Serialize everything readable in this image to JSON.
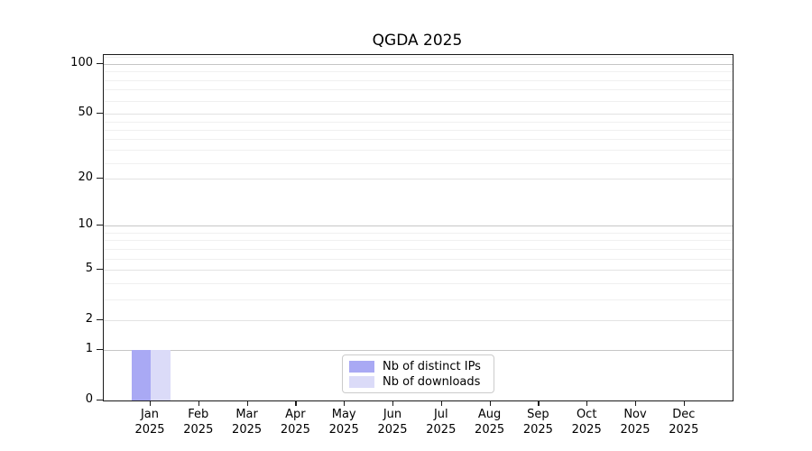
{
  "figure": {
    "title": "QGDA 2025"
  },
  "legend": {
    "items": [
      {
        "label": "Nb of distinct IPs",
        "color": "#a9a9f4"
      },
      {
        "label": "Nb of downloads",
        "color": "#dbdbf8"
      }
    ]
  },
  "chart_data": {
    "type": "bar",
    "title": "QGDA 2025",
    "categories": [
      "Jan 2025",
      "Feb 2025",
      "Mar 2025",
      "Apr 2025",
      "May 2025",
      "Jun 2025",
      "Jul 2025",
      "Aug 2025",
      "Sep 2025",
      "Oct 2025",
      "Nov 2025",
      "Dec 2025"
    ],
    "series": [
      {
        "name": "Nb of distinct IPs",
        "color": "#a9a9f4",
        "values": [
          1,
          0,
          0,
          0,
          0,
          0,
          0,
          0,
          0,
          0,
          0,
          0
        ]
      },
      {
        "name": "Nb of downloads",
        "color": "#dbdbf8",
        "values": [
          1,
          0,
          0,
          0,
          0,
          0,
          0,
          0,
          0,
          0,
          0,
          0
        ]
      }
    ],
    "xlabel": "",
    "ylabel": "",
    "yscale": "log1p",
    "ylim": [
      0,
      113
    ],
    "y_major_ticks": [
      0,
      1,
      2,
      5,
      10,
      20,
      50,
      100
    ],
    "y_minor_ticks": [
      3,
      4,
      6,
      7,
      8,
      9,
      25,
      30,
      35,
      40,
      45,
      60,
      70,
      80,
      90,
      110
    ],
    "grid": true,
    "legend_position": "lower-center-inside"
  }
}
